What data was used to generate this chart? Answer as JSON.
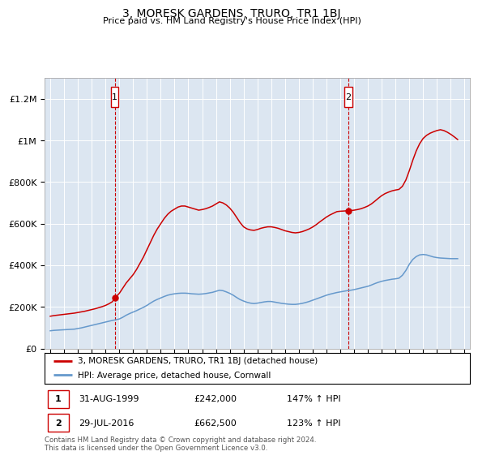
{
  "title": "3, MORESK GARDENS, TRURO, TR1 1BJ",
  "subtitle": "Price paid vs. HM Land Registry's House Price Index (HPI)",
  "legend_line1": "3, MORESK GARDENS, TRURO, TR1 1BJ (detached house)",
  "legend_line2": "HPI: Average price, detached house, Cornwall",
  "footnote": "Contains HM Land Registry data © Crown copyright and database right 2024.\nThis data is licensed under the Open Government Licence v3.0.",
  "marker1_date": "31-AUG-1999",
  "marker1_price": "£242,000",
  "marker1_hpi": "147% ↑ HPI",
  "marker2_date": "29-JUL-2016",
  "marker2_price": "£662,500",
  "marker2_hpi": "123% ↑ HPI",
  "red_color": "#cc0000",
  "blue_color": "#6699cc",
  "background_color": "#dce6f1",
  "ylim": [
    0,
    1300000
  ],
  "yticks": [
    0,
    200000,
    400000,
    600000,
    800000,
    1000000,
    1200000
  ],
  "red_x": [
    1995.0,
    1995.25,
    1995.5,
    1995.75,
    1996.0,
    1996.25,
    1996.5,
    1996.75,
    1997.0,
    1997.25,
    1997.5,
    1997.75,
    1998.0,
    1998.25,
    1998.5,
    1998.75,
    1999.0,
    1999.25,
    1999.5,
    1999.667,
    1999.75,
    2000.0,
    2000.25,
    2000.5,
    2000.75,
    2001.0,
    2001.25,
    2001.5,
    2001.75,
    2002.0,
    2002.25,
    2002.5,
    2002.75,
    2003.0,
    2003.25,
    2003.5,
    2003.75,
    2004.0,
    2004.25,
    2004.5,
    2004.75,
    2005.0,
    2005.25,
    2005.5,
    2005.75,
    2006.0,
    2006.25,
    2006.5,
    2006.75,
    2007.0,
    2007.25,
    2007.5,
    2007.75,
    2008.0,
    2008.25,
    2008.5,
    2008.75,
    2009.0,
    2009.25,
    2009.5,
    2009.75,
    2010.0,
    2010.25,
    2010.5,
    2010.75,
    2011.0,
    2011.25,
    2011.5,
    2011.75,
    2012.0,
    2012.25,
    2012.5,
    2012.75,
    2013.0,
    2013.25,
    2013.5,
    2013.75,
    2014.0,
    2014.25,
    2014.5,
    2014.75,
    2015.0,
    2015.25,
    2015.5,
    2015.75,
    2016.0,
    2016.25,
    2016.583,
    2016.75,
    2017.0,
    2017.25,
    2017.5,
    2017.75,
    2018.0,
    2018.25,
    2018.5,
    2018.75,
    2019.0,
    2019.25,
    2019.5,
    2019.75,
    2020.0,
    2020.25,
    2020.5,
    2020.75,
    2021.0,
    2021.25,
    2021.5,
    2021.75,
    2022.0,
    2022.25,
    2022.5,
    2022.75,
    2023.0,
    2023.25,
    2023.5,
    2023.75,
    2024.0,
    2024.25,
    2024.5
  ],
  "red_y": [
    155000,
    158000,
    160000,
    162000,
    164000,
    166000,
    168000,
    170000,
    173000,
    176000,
    179000,
    183000,
    187000,
    191000,
    196000,
    201000,
    207000,
    215000,
    225000,
    242000,
    248000,
    265000,
    290000,
    315000,
    335000,
    355000,
    380000,
    410000,
    440000,
    475000,
    510000,
    545000,
    575000,
    600000,
    625000,
    645000,
    660000,
    670000,
    680000,
    685000,
    685000,
    680000,
    675000,
    670000,
    665000,
    668000,
    672000,
    678000,
    685000,
    695000,
    705000,
    700000,
    690000,
    675000,
    655000,
    630000,
    605000,
    585000,
    575000,
    570000,
    568000,
    572000,
    578000,
    582000,
    585000,
    585000,
    582000,
    578000,
    572000,
    566000,
    562000,
    558000,
    556000,
    558000,
    562000,
    568000,
    575000,
    584000,
    595000,
    608000,
    620000,
    632000,
    642000,
    650000,
    658000,
    660000,
    661000,
    662500,
    663000,
    665000,
    668000,
    672000,
    678000,
    685000,
    695000,
    708000,
    722000,
    735000,
    745000,
    752000,
    758000,
    762000,
    765000,
    780000,
    810000,
    855000,
    905000,
    950000,
    985000,
    1010000,
    1025000,
    1035000,
    1042000,
    1048000,
    1052000,
    1048000,
    1040000,
    1030000,
    1018000,
    1005000
  ],
  "blue_x": [
    1995.0,
    1995.25,
    1995.5,
    1995.75,
    1996.0,
    1996.25,
    1996.5,
    1996.75,
    1997.0,
    1997.25,
    1997.5,
    1997.75,
    1998.0,
    1998.25,
    1998.5,
    1998.75,
    1999.0,
    1999.25,
    1999.5,
    1999.75,
    2000.0,
    2000.25,
    2000.5,
    2000.75,
    2001.0,
    2001.25,
    2001.5,
    2001.75,
    2002.0,
    2002.25,
    2002.5,
    2002.75,
    2003.0,
    2003.25,
    2003.5,
    2003.75,
    2004.0,
    2004.25,
    2004.5,
    2004.75,
    2005.0,
    2005.25,
    2005.5,
    2005.75,
    2006.0,
    2006.25,
    2006.5,
    2006.75,
    2007.0,
    2007.25,
    2007.5,
    2007.75,
    2008.0,
    2008.25,
    2008.5,
    2008.75,
    2009.0,
    2009.25,
    2009.5,
    2009.75,
    2010.0,
    2010.25,
    2010.5,
    2010.75,
    2011.0,
    2011.25,
    2011.5,
    2011.75,
    2012.0,
    2012.25,
    2012.5,
    2012.75,
    2013.0,
    2013.25,
    2013.5,
    2013.75,
    2014.0,
    2014.25,
    2014.5,
    2014.75,
    2015.0,
    2015.25,
    2015.5,
    2015.75,
    2016.0,
    2016.25,
    2016.5,
    2016.75,
    2017.0,
    2017.25,
    2017.5,
    2017.75,
    2018.0,
    2018.25,
    2018.5,
    2018.75,
    2019.0,
    2019.25,
    2019.5,
    2019.75,
    2020.0,
    2020.25,
    2020.5,
    2020.75,
    2021.0,
    2021.25,
    2021.5,
    2021.75,
    2022.0,
    2022.25,
    2022.5,
    2022.75,
    2023.0,
    2023.25,
    2023.5,
    2023.75,
    2024.0,
    2024.25,
    2024.5
  ],
  "blue_y": [
    85000,
    87000,
    88000,
    89000,
    90000,
    91000,
    92000,
    93000,
    96000,
    99000,
    103000,
    107000,
    111000,
    115000,
    119000,
    123000,
    127000,
    131000,
    135000,
    138000,
    142000,
    150000,
    160000,
    168000,
    175000,
    182000,
    190000,
    198000,
    207000,
    218000,
    228000,
    236000,
    243000,
    250000,
    256000,
    260000,
    263000,
    265000,
    266000,
    266000,
    265000,
    263000,
    262000,
    261000,
    262000,
    264000,
    267000,
    270000,
    275000,
    280000,
    278000,
    272000,
    265000,
    256000,
    245000,
    235000,
    228000,
    222000,
    218000,
    216000,
    218000,
    221000,
    224000,
    226000,
    226000,
    223000,
    220000,
    217000,
    215000,
    213000,
    212000,
    212000,
    214000,
    217000,
    221000,
    226000,
    232000,
    238000,
    244000,
    250000,
    256000,
    261000,
    265000,
    269000,
    272000,
    275000,
    278000,
    280000,
    283000,
    287000,
    291000,
    295000,
    299000,
    305000,
    312000,
    318000,
    323000,
    327000,
    330000,
    333000,
    335000,
    338000,
    352000,
    375000,
    405000,
    428000,
    442000,
    450000,
    452000,
    450000,
    445000,
    440000,
    437000,
    435000,
    434000,
    433000,
    432000,
    432000,
    432000
  ],
  "marker1_x": 1999.667,
  "marker1_y": 242000,
  "marker2_x": 2016.583,
  "marker2_y": 662500,
  "xlim_left": 1994.6,
  "xlim_right": 2025.4
}
